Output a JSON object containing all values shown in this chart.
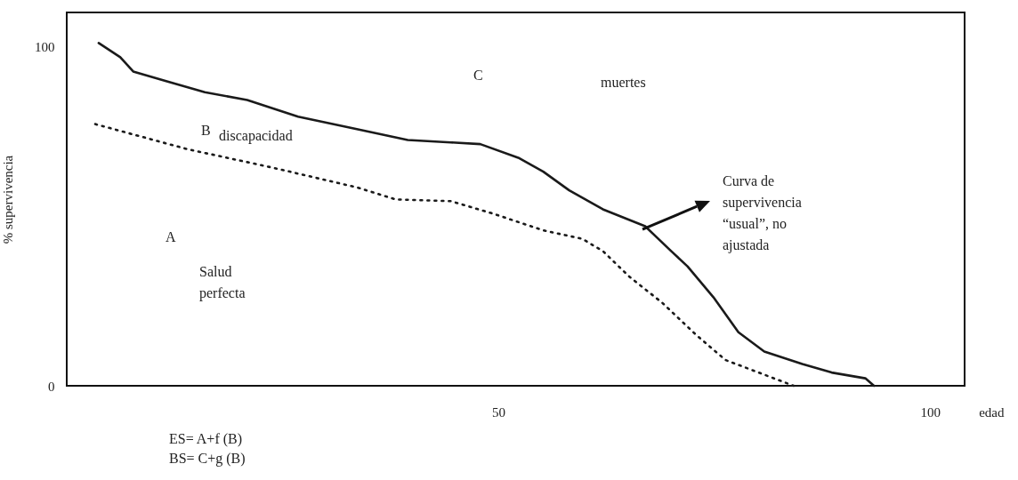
{
  "chart_data": {
    "type": "line",
    "xlabel": "edad",
    "ylabel": "% supervivencia",
    "xlim": [
      0,
      104
    ],
    "ylim": [
      0,
      110
    ],
    "xticks": [
      50,
      100
    ],
    "yticks": [
      0,
      100
    ],
    "grid": false,
    "marker": "none",
    "series": [
      {
        "color": "#1a1a1a",
        "line_style": "solid",
        "x": [
          3.7,
          6.2,
          7.7,
          11.6,
          16.0,
          20.9,
          26.8,
          33.6,
          39.5,
          44.5,
          47.9,
          52.3,
          55.2,
          58.2,
          62.1,
          67.0,
          70.0,
          71.9,
          74.9,
          77.8,
          80.8,
          85.2,
          88.6,
          92.5,
          93.5
        ],
        "values": [
          101,
          96.8,
          92.6,
          89.7,
          86.5,
          84.2,
          79.3,
          75.6,
          72.4,
          71.7,
          71.2,
          67.2,
          63.1,
          57.6,
          52,
          47,
          39.7,
          35.2,
          26.1,
          15.8,
          10.1,
          6.4,
          3.9,
          2.2,
          0
        ]
      },
      {
        "color": "#1a1a1a",
        "line_style": "dotted",
        "x": [
          3.3,
          14.0,
          23.8,
          33.7,
          38.1,
          44.5,
          49.4,
          55.2,
          59.7,
          62.1,
          65.1,
          69.0,
          72.9,
          76.3,
          84.2
        ],
        "values": [
          77.1,
          69.7,
          64.3,
          58.4,
          54.9,
          54.4,
          50.7,
          45.8,
          43.3,
          39.7,
          32.3,
          24.4,
          15.0,
          7.6,
          0
        ]
      }
    ],
    "annotations": [
      "A",
      "Salud perfecta",
      "B",
      "discapacidad",
      "C",
      "muertes",
      "Curva de supervivencia “usual”, no ajustada",
      "ES= A+f (B)",
      "BS= C+g (B)"
    ]
  }
}
